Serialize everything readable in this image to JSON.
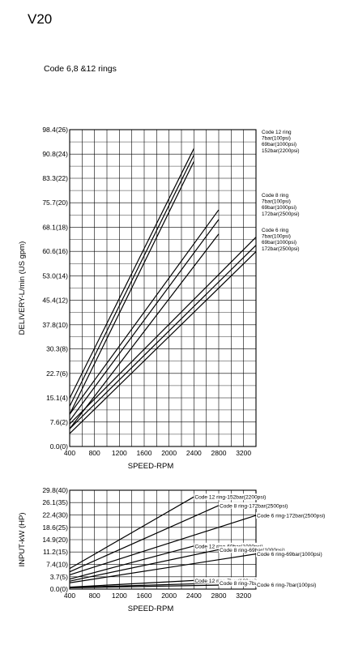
{
  "header": {
    "model": "V20",
    "subtitle": "Code 6,8 &12 rings"
  },
  "chart_data": [
    {
      "type": "line",
      "xlabel": "SPEED-RPM",
      "ylabel": "DELIVERY-L/min (US gpm)",
      "xlim": [
        400,
        3400
      ],
      "ylim": [
        0,
        98.4
      ],
      "x_ticks": [
        {
          "v": 400,
          "label": "400"
        },
        {
          "v": 800,
          "label": "800"
        },
        {
          "v": 1200,
          "label": "1200"
        },
        {
          "v": 1600,
          "label": "1600"
        },
        {
          "v": 2000,
          "label": "2000"
        },
        {
          "v": 2400,
          "label": "2400"
        },
        {
          "v": 2800,
          "label": "2800"
        },
        {
          "v": 3200,
          "label": "3200"
        }
      ],
      "y_ticks": [
        {
          "v": 0,
          "label": "0.0(0)"
        },
        {
          "v": 7.6,
          "label": "7.6(2)"
        },
        {
          "v": 15.1,
          "label": "15.1(4)"
        },
        {
          "v": 22.7,
          "label": "22.7(6)"
        },
        {
          "v": 30.3,
          "label": "30.3(8)"
        },
        {
          "v": 37.8,
          "label": "37.8(10)"
        },
        {
          "v": 45.4,
          "label": "45.4(12)"
        },
        {
          "v": 53.0,
          "label": "53.0(14)"
        },
        {
          "v": 60.6,
          "label": "60.6(16)"
        },
        {
          "v": 68.1,
          "label": "68.1(18)"
        },
        {
          "v": 75.7,
          "label": "75.7(20)"
        },
        {
          "v": 83.3,
          "label": "83.3(22)"
        },
        {
          "v": 90.8,
          "label": "90.8(24)"
        },
        {
          "v": 98.4,
          "label": "98.4(26)"
        }
      ],
      "grid": true,
      "legend_groups": [
        {
          "lines": [
            "Code 12 ring",
            "7bar(100psi)",
            "69bar(1000psi)",
            "152bar(2200psi)"
          ]
        },
        {
          "lines": [
            "Code 8 ring",
            "7bar(100psi)",
            "69bar(1000psi)",
            "172bar(2500psi)"
          ]
        },
        {
          "lines": [
            "Code 6 ring",
            "7bar(100psi)",
            "69bar(1000psi)",
            "172bar(2500psi)"
          ]
        }
      ],
      "series": [
        {
          "group": "Code 12 ring",
          "pressure": "7bar(100psi)",
          "x": [
            400,
            2400
          ],
          "y": [
            15.0,
            92.5
          ]
        },
        {
          "group": "Code 12 ring",
          "pressure": "69bar(1000psi)",
          "x": [
            400,
            2400
          ],
          "y": [
            12.5,
            90.5
          ]
        },
        {
          "group": "Code 12 ring",
          "pressure": "152bar(2200psi)",
          "x": [
            400,
            2400
          ],
          "y": [
            10.0,
            88.5
          ]
        },
        {
          "group": "Code 8 ring",
          "pressure": "7bar(100psi)",
          "x": [
            400,
            2800
          ],
          "y": [
            10.0,
            73.5
          ]
        },
        {
          "group": "Code 8 ring",
          "pressure": "69bar(1000psi)",
          "x": [
            400,
            2800
          ],
          "y": [
            8.0,
            70.5
          ]
        },
        {
          "group": "Code 8 ring",
          "pressure": "172bar(2500psi)",
          "x": [
            400,
            2800
          ],
          "y": [
            5.5,
            66.0
          ]
        },
        {
          "group": "Code 6 ring",
          "pressure": "7bar(100psi)",
          "x": [
            400,
            3400
          ],
          "y": [
            7.0,
            65.0
          ]
        },
        {
          "group": "Code 6 ring",
          "pressure": "69bar(1000psi)",
          "x": [
            400,
            3400
          ],
          "y": [
            5.5,
            62.5
          ]
        },
        {
          "group": "Code 6 ring",
          "pressure": "172bar(2500psi)",
          "x": [
            400,
            3400
          ],
          "y": [
            4.0,
            60.5
          ]
        }
      ]
    },
    {
      "type": "line",
      "xlabel": "SPEED-RPM",
      "ylabel": "INPUT-kW (HP)",
      "xlim": [
        400,
        3400
      ],
      "ylim": [
        0,
        29.8
      ],
      "x_ticks": [
        {
          "v": 400,
          "label": "400"
        },
        {
          "v": 800,
          "label": "800"
        },
        {
          "v": 1200,
          "label": "1200"
        },
        {
          "v": 1600,
          "label": "1600"
        },
        {
          "v": 2000,
          "label": "2000"
        },
        {
          "v": 2400,
          "label": "2400"
        },
        {
          "v": 2800,
          "label": "2800"
        },
        {
          "v": 3200,
          "label": "3200"
        }
      ],
      "y_ticks": [
        {
          "v": 0,
          "label": "0.0(0)"
        },
        {
          "v": 3.7,
          "label": "3.7(5)"
        },
        {
          "v": 7.4,
          "label": "7.4(10)"
        },
        {
          "v": 11.2,
          "label": "11.2(15)"
        },
        {
          "v": 14.9,
          "label": "14.9(20)"
        },
        {
          "v": 18.6,
          "label": "18.6(25)"
        },
        {
          "v": 22.4,
          "label": "22.4(30)"
        },
        {
          "v": 26.1,
          "label": "26.1(35)"
        },
        {
          "v": 29.8,
          "label": "29.8(40)"
        }
      ],
      "grid": true,
      "series": [
        {
          "name": "Code 12 ring-152bar(2200psi)",
          "x": [
            400,
            2400
          ],
          "y": [
            6.2,
            27.8
          ]
        },
        {
          "name": "Code 8 ring-172bar(2500psi)",
          "x": [
            400,
            2800
          ],
          "y": [
            5.2,
            25.2
          ]
        },
        {
          "name": "Code 6 ring-172bar(2500psi)",
          "x": [
            400,
            3400
          ],
          "y": [
            4.3,
            22.2
          ]
        },
        {
          "name": "Code 12 ring-69bar(1000psi)",
          "x": [
            400,
            2400
          ],
          "y": [
            3.0,
            13.0
          ]
        },
        {
          "name": "Code 8 ring-69bar(1000psi)",
          "x": [
            400,
            2800
          ],
          "y": [
            2.4,
            11.9
          ]
        },
        {
          "name": "Code 6 ring-69bar(1000psi)",
          "x": [
            400,
            3400
          ],
          "y": [
            1.9,
            10.6
          ]
        },
        {
          "name": "Code 12 ring-7bar(100psi)",
          "x": [
            400,
            2400
          ],
          "y": [
            0.6,
            2.6
          ]
        },
        {
          "name": "Code 8 ring-7bar(100psi)",
          "x": [
            400,
            2800
          ],
          "y": [
            0.5,
            1.8
          ]
        },
        {
          "name": "Code 6 ring-7bar(100psi)",
          "x": [
            400,
            3400
          ],
          "y": [
            0.4,
            1.4
          ]
        }
      ]
    }
  ]
}
